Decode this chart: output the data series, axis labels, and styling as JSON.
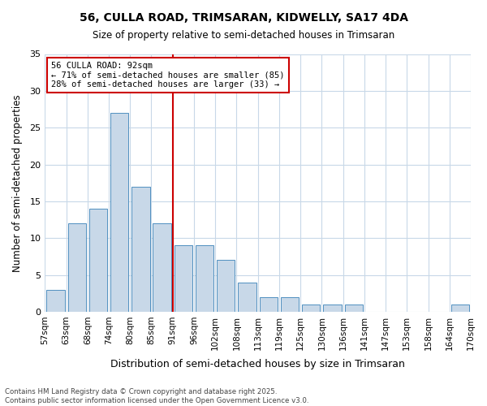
{
  "title1": "56, CULLA ROAD, TRIMSARAN, KIDWELLY, SA17 4DA",
  "title2": "Size of property relative to semi-detached houses in Trimsaran",
  "xlabel": "Distribution of semi-detached houses by size in Trimsaran",
  "ylabel": "Number of semi-detached properties",
  "tick_labels": [
    "57sqm",
    "63sqm",
    "68sqm",
    "74sqm",
    "80sqm",
    "85sqm",
    "91sqm",
    "96sqm",
    "102sqm",
    "108sqm",
    "113sqm",
    "119sqm",
    "125sqm",
    "130sqm",
    "136sqm",
    "141sqm",
    "147sqm",
    "153sqm",
    "158sqm",
    "164sqm",
    "170sqm"
  ],
  "values": [
    3,
    12,
    14,
    27,
    17,
    12,
    9,
    9,
    7,
    4,
    2,
    2,
    1,
    1,
    1,
    0,
    0,
    0,
    0,
    1
  ],
  "annotation_line1": "56 CULLA ROAD: 92sqm",
  "annotation_line2": "← 71% of semi-detached houses are smaller (85)",
  "annotation_line3": "28% of semi-detached houses are larger (33) →",
  "bar_color": "#c8d8e8",
  "bar_edge_color": "#5090c0",
  "vline_color": "#cc0000",
  "box_edge_color": "#cc0000",
  "background_color": "#ffffff",
  "grid_color": "#c8d8e8",
  "footer1": "Contains HM Land Registry data © Crown copyright and database right 2025.",
  "footer2": "Contains public sector information licensed under the Open Government Licence v3.0.",
  "ylim": [
    0,
    35
  ],
  "yticks": [
    0,
    5,
    10,
    15,
    20,
    25,
    30,
    35
  ],
  "vline_x": 6.0
}
